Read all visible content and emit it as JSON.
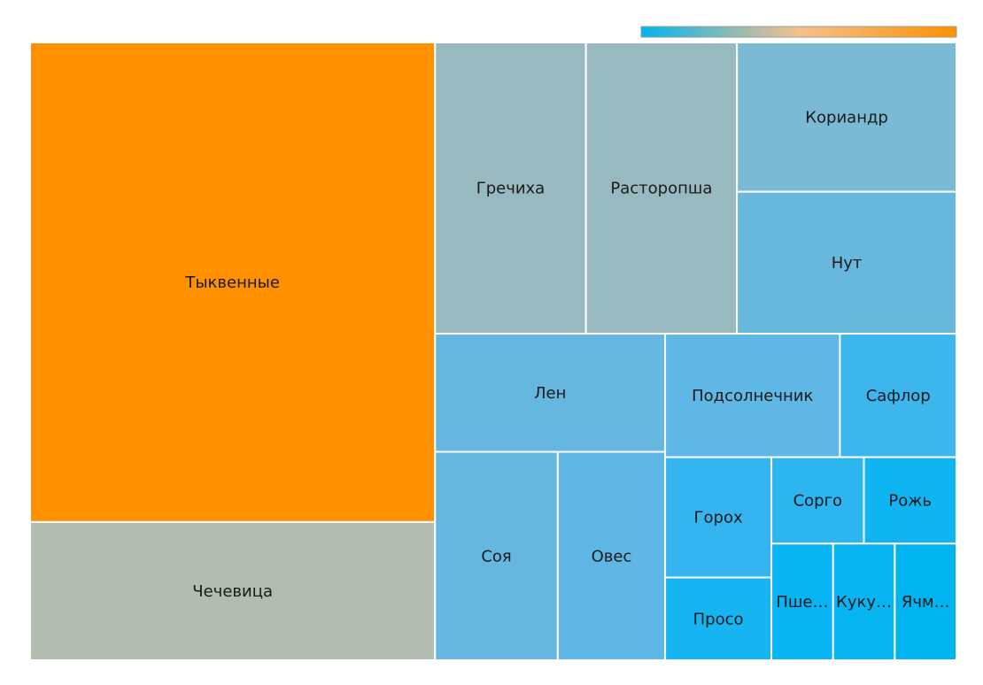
{
  "chart_data": {
    "type": "treemap",
    "title": "",
    "colorscale": {
      "colors": [
        "#00b4f0",
        "#f6c08a",
        "#ff9000"
      ],
      "min": 0,
      "max": 1
    },
    "items": [
      {
        "label": "Тыквенные",
        "value": 24.3,
        "color": "#ff9000"
      },
      {
        "label": "Чечевица",
        "value": 7.0,
        "color": "#b3bcb1"
      },
      {
        "label": "Гречиха",
        "value": 5.5,
        "color": "#99b9c0"
      },
      {
        "label": "Расторопша",
        "value": 5.5,
        "color": "#99b9c0"
      },
      {
        "label": "Кориандр",
        "value": 4.1,
        "color": "#7bbad5"
      },
      {
        "label": "Нут",
        "value": 3.9,
        "color": "#68b8dd"
      },
      {
        "label": "Лен",
        "value": 3.4,
        "color": "#65b7e0"
      },
      {
        "label": "Подсолнечник",
        "value": 2.7,
        "color": "#5eb7e4"
      },
      {
        "label": "Сафлор",
        "value": 1.8,
        "color": "#3db6ed"
      },
      {
        "label": "Соя",
        "value": 3.2,
        "color": "#65b7e0"
      },
      {
        "label": "Овес",
        "value": 2.8,
        "color": "#5eb7e4"
      },
      {
        "label": "Горох",
        "value": 1.6,
        "color": "#35b5ef"
      },
      {
        "label": "Просо",
        "value": 1.1,
        "color": "#16b5f1"
      },
      {
        "label": "Сорго",
        "value": 1.0,
        "color": "#2cb5ef"
      },
      {
        "label": "Рожь",
        "value": 1.0,
        "color": "#10b4f1"
      },
      {
        "label": "Пше…",
        "value": 0.9,
        "color": "#08b4f1"
      },
      {
        "label": "Куку…",
        "value": 0.9,
        "color": "#05b4f1"
      },
      {
        "label": "Ячм…",
        "value": 0.9,
        "color": "#00b4f0"
      }
    ]
  }
}
